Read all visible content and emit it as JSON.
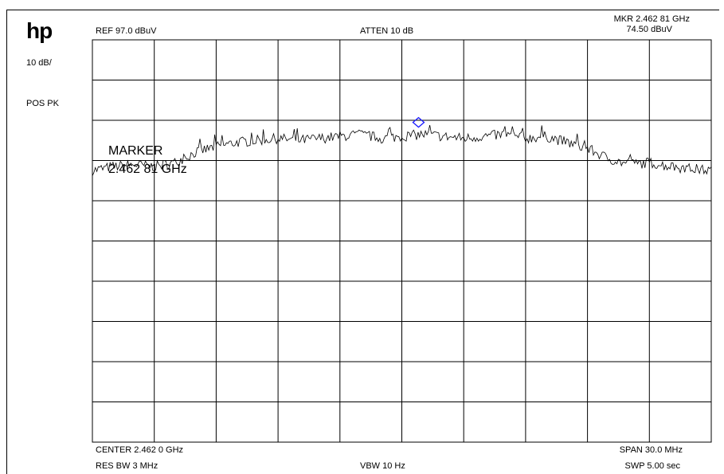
{
  "brand": "hp",
  "header": {
    "ref_level": "REF  97.0 dBuV",
    "attenuation": "ATTEN 10 dB",
    "marker_freq": "MKR 2.462 81 GHz",
    "marker_amp": "74.50 dBuV"
  },
  "side": {
    "scale": "10 dB/",
    "detector": "POS PK"
  },
  "footer": {
    "center": "CENTER 2.462 0 GHz",
    "span": "SPAN 30.0 MHz",
    "res_bw": "RES BW 3 MHz",
    "vbw": "VBW 10  Hz",
    "sweep": "SWP 5.00  sec"
  },
  "marker_annotation": {
    "line1": "MARKER",
    "line2": "2.462 81 GHz"
  },
  "colors": {
    "trace": "#000000",
    "grid": "#000000",
    "marker": "#1a1aff"
  },
  "chart_data": {
    "type": "line",
    "x_unit": "GHz",
    "y_unit": "dBuV",
    "xlim": [
      2.447,
      2.477
    ],
    "ylim": [
      -3.0,
      97.0
    ],
    "x_divisions": 10,
    "y_divisions": 10,
    "grid": true,
    "marker": {
      "x": 2.46281,
      "y": 74.5
    },
    "series": [
      {
        "x": [
          2.447,
          2.448,
          2.449,
          2.45,
          2.451,
          2.452,
          2.453,
          2.454,
          2.455,
          2.456,
          2.457,
          2.458,
          2.459,
          2.46,
          2.461,
          2.462,
          2.463,
          2.464,
          2.465,
          2.466,
          2.467,
          2.468,
          2.469,
          2.47,
          2.471,
          2.472,
          2.473,
          2.474,
          2.475,
          2.476,
          2.477
        ],
        "y": [
          64.5,
          65.5,
          66.0,
          65.5,
          66.5,
          69.0,
          70.5,
          71.5,
          72.0,
          72.5,
          72.0,
          72.5,
          73.0,
          73.5,
          72.5,
          73.0,
          73.5,
          73.0,
          72.5,
          73.0,
          73.5,
          72.5,
          73.0,
          71.5,
          70.0,
          67.5,
          66.0,
          66.5,
          65.5,
          65.0,
          64.5
        ]
      }
    ]
  }
}
